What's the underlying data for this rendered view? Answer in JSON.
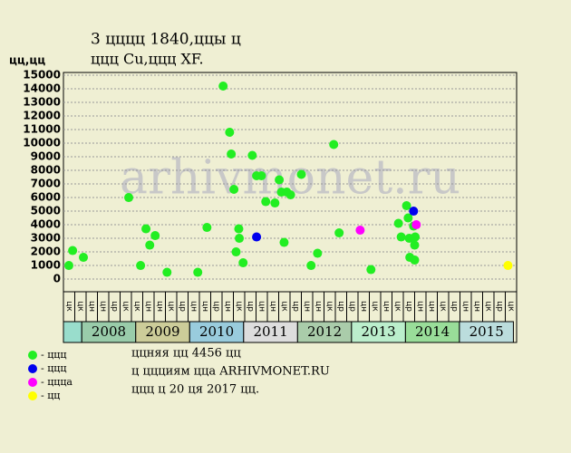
{
  "chart_data": {
    "type": "scatter",
    "title": "3 цццц 1840,ццы ц",
    "subtitle": "ццц Cu,ццц XF.",
    "y_label": "цц,цц",
    "watermark": "arhivmonet.ru",
    "xlim": [
      2007.66,
      2016.06
    ],
    "ylim": [
      -930,
      15200
    ],
    "yticks": [
      0,
      1000,
      2000,
      3000,
      4000,
      5000,
      6000,
      7000,
      8000,
      9000,
      10000,
      11000,
      12000,
      13000,
      14000,
      15000
    ],
    "grid": true,
    "periods": [
      "цк",
      "цк",
      "цн",
      "цн",
      "цр",
      "цк",
      "цк",
      "цн",
      "цн",
      "цк",
      "цр",
      "цн",
      "цн",
      "цр",
      "цн",
      "цк",
      "цр",
      "цн",
      "цн",
      "цк",
      "цр",
      "цн",
      "цн",
      "цк",
      "цр",
      "цр",
      "цн",
      "цк",
      "цн",
      "цк",
      "цр",
      "цн",
      "цн",
      "цк",
      "цр",
      "цн",
      "цн",
      "цк",
      "цр",
      "цк"
    ],
    "years": [
      {
        "label": "2008",
        "start": 2008,
        "color": "#99ccaa"
      },
      {
        "label": "2009",
        "start": 2009,
        "color": "#cccc99"
      },
      {
        "label": "2010",
        "start": 2010,
        "color": "#99ccdd"
      },
      {
        "label": "2011",
        "start": 2011,
        "color": "#dddddd"
      },
      {
        "label": "2012",
        "start": 2012,
        "color": "#aaccaa"
      },
      {
        "label": "2013",
        "start": 2013,
        "color": "#bbeecc"
      },
      {
        "label": "2014",
        "start": 2014,
        "color": "#99dd99"
      },
      {
        "label": "2015",
        "start": 2015,
        "color": "#bbdddd"
      }
    ],
    "series": [
      {
        "name": "- ццц",
        "color": "#22ee22",
        "x": [
          2007.76,
          2007.83,
          2008.03,
          2008.87,
          2009.09,
          2009.19,
          2009.26,
          2009.36,
          2009.58,
          2010.15,
          2010.32,
          2010.62,
          2010.74,
          2010.77,
          2010.82,
          2010.86,
          2010.91,
          2010.92,
          2010.99,
          2011.16,
          2011.24,
          2011.33,
          2011.41,
          2011.58,
          2011.66,
          2011.7,
          2011.75,
          2011.8,
          2011.87,
          2012.07,
          2012.25,
          2012.37,
          2012.67,
          2012.77,
          2013.36,
          2013.87,
          2013.92,
          2014.02,
          2014.05,
          2014.07,
          2014.08,
          2014.15,
          2014.17,
          2014.17,
          2014.18
        ],
        "values": [
          1000,
          2100,
          1600,
          6000,
          1000,
          3700,
          2500,
          3200,
          500,
          500,
          3800,
          14200,
          10800,
          9200,
          6600,
          2000,
          3700,
          3000,
          1200,
          9100,
          7600,
          7600,
          5700,
          5600,
          7300,
          6400,
          2700,
          6400,
          6200,
          7700,
          1000,
          1900,
          9900,
          3400,
          700,
          4100,
          3100,
          5400,
          4500,
          3000,
          1600,
          3900,
          1400,
          2500,
          3100
        ]
      },
      {
        "name": "- ццц",
        "color": "#0000ee",
        "x": [
          2011.24,
          2014.15
        ],
        "values": [
          3100,
          5000
        ]
      },
      {
        "name": "- ццца",
        "color": "#ff00ff",
        "x": [
          2013.16,
          2014.2
        ],
        "values": [
          3600,
          4000
        ]
      },
      {
        "name": "- цц",
        "color": "#ffff00",
        "x": [
          2015.9
        ],
        "values": [
          1000
        ]
      }
    ],
    "notes": [
      "ццняя цц 4456 цц",
      "ц ццциям цца ARHIVMONET.RU",
      "ццц ц 20 ця 2017 цц."
    ]
  }
}
